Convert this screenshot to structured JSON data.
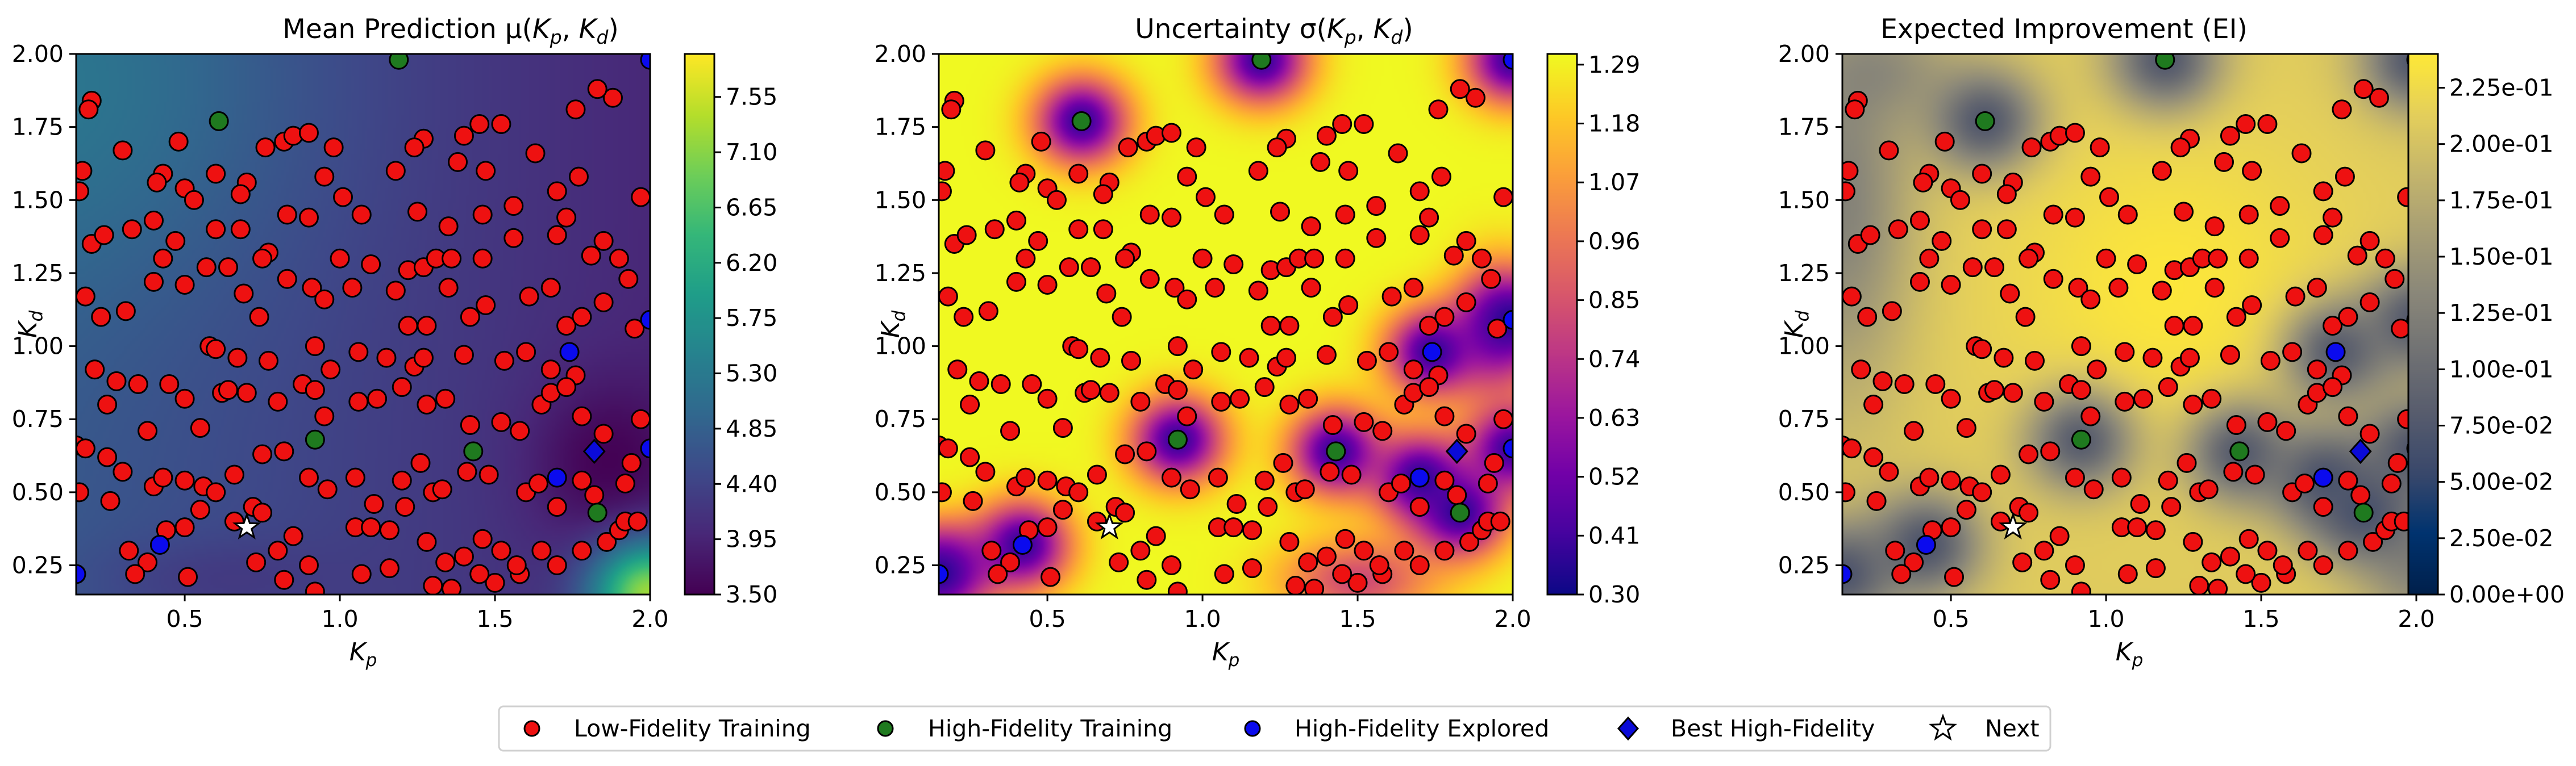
{
  "chart_data": [
    {
      "type": "heatmap",
      "title": "Mean Prediction μ(K_p, K_d)",
      "xlabel": "K_p",
      "ylabel": "K_d",
      "xlim": [
        0.15,
        2.0
      ],
      "ylim": [
        0.15,
        2.0
      ],
      "x_ticks": [
        "0.5",
        "1.0",
        "1.5",
        "2.0"
      ],
      "y_ticks": [
        "0.25",
        "0.50",
        "0.75",
        "1.00",
        "1.25",
        "1.50",
        "1.75",
        "2.00"
      ],
      "colormap": "viridis",
      "colorbar_range": [
        3.5,
        7.9
      ],
      "colorbar_ticks": [
        "3.50",
        "3.95",
        "4.40",
        "4.85",
        "5.30",
        "5.75",
        "6.20",
        "6.65",
        "7.10",
        "7.55"
      ]
    },
    {
      "type": "heatmap",
      "title": "Uncertainty σ(K_p, K_d)",
      "xlabel": "K_p",
      "ylabel": "K_d",
      "xlim": [
        0.15,
        2.0
      ],
      "ylim": [
        0.15,
        2.0
      ],
      "x_ticks": [
        "0.5",
        "1.0",
        "1.5",
        "2.0"
      ],
      "y_ticks": [
        "0.25",
        "0.50",
        "0.75",
        "1.00",
        "1.25",
        "1.50",
        "1.75",
        "2.00"
      ],
      "colormap": "plasma",
      "colorbar_range": [
        0.3,
        1.31
      ],
      "colorbar_ticks": [
        "0.30",
        "0.41",
        "0.52",
        "0.63",
        "0.74",
        "0.85",
        "0.96",
        "1.07",
        "1.18",
        "1.29"
      ]
    },
    {
      "type": "heatmap",
      "title": "Expected Improvement (EI)",
      "xlabel": "K_p",
      "ylabel": "K_d",
      "xlim": [
        0.15,
        2.0
      ],
      "ylim": [
        0.15,
        2.0
      ],
      "x_ticks": [
        "0.5",
        "1.0",
        "1.5",
        "2.0"
      ],
      "y_ticks": [
        "0.25",
        "0.50",
        "0.75",
        "1.00",
        "1.25",
        "1.50",
        "1.75",
        "2.00"
      ],
      "colormap": "cividis",
      "colorbar_range": [
        0.0,
        0.24
      ],
      "colorbar_ticks": [
        "0.00e+00",
        "2.50e-02",
        "5.00e-02",
        "7.50e-02",
        "1.00e-01",
        "1.25e-01",
        "1.50e-01",
        "1.75e-01",
        "2.00e-01",
        "2.25e-01"
      ]
    }
  ],
  "points": {
    "low_fidelity": [
      [
        0.2,
        1.84
      ],
      [
        0.19,
        1.81
      ],
      [
        0.3,
        1.67
      ],
      [
        0.17,
        1.6
      ],
      [
        0.16,
        1.53
      ],
      [
        0.48,
        1.7
      ],
      [
        0.43,
        1.59
      ],
      [
        0.41,
        1.56
      ],
      [
        0.5,
        1.54
      ],
      [
        0.53,
        1.5
      ],
      [
        0.6,
        1.59
      ],
      [
        0.7,
        1.56
      ],
      [
        0.68,
        1.52
      ],
      [
        0.76,
        1.68
      ],
      [
        0.82,
        1.7
      ],
      [
        0.85,
        1.72
      ],
      [
        0.9,
        1.73
      ],
      [
        0.98,
        1.68
      ],
      [
        0.95,
        1.58
      ],
      [
        1.01,
        1.51
      ],
      [
        1.07,
        1.45
      ],
      [
        1.18,
        1.6
      ],
      [
        1.27,
        1.71
      ],
      [
        1.24,
        1.68
      ],
      [
        1.4,
        1.72
      ],
      [
        1.45,
        1.76
      ],
      [
        1.52,
        1.76
      ],
      [
        1.47,
        1.6
      ],
      [
        1.38,
        1.63
      ],
      [
        1.63,
        1.66
      ],
      [
        1.77,
        1.58
      ],
      [
        1.76,
        1.81
      ],
      [
        1.88,
        1.85
      ],
      [
        1.83,
        1.88
      ],
      [
        1.25,
        1.46
      ],
      [
        1.35,
        1.41
      ],
      [
        1.46,
        1.45
      ],
      [
        1.56,
        1.48
      ],
      [
        1.7,
        1.53
      ],
      [
        1.73,
        1.44
      ],
      [
        1.85,
        1.36
      ],
      [
        1.9,
        1.3
      ],
      [
        1.97,
        1.51
      ],
      [
        0.33,
        1.4
      ],
      [
        0.4,
        1.43
      ],
      [
        0.47,
        1.36
      ],
      [
        0.6,
        1.4
      ],
      [
        0.68,
        1.4
      ],
      [
        0.77,
        1.32
      ],
      [
        0.75,
        1.3
      ],
      [
        0.64,
        1.27
      ],
      [
        0.57,
        1.27
      ],
      [
        0.5,
        1.21
      ],
      [
        0.43,
        1.3
      ],
      [
        0.83,
        1.45
      ],
      [
        0.9,
        1.44
      ],
      [
        1.0,
        1.3
      ],
      [
        1.1,
        1.28
      ],
      [
        1.22,
        1.26
      ],
      [
        1.27,
        1.27
      ],
      [
        1.31,
        1.3
      ],
      [
        1.36,
        1.3
      ],
      [
        1.46,
        1.3
      ],
      [
        1.56,
        1.37
      ],
      [
        1.7,
        1.38
      ],
      [
        1.81,
        1.31
      ],
      [
        1.93,
        1.23
      ],
      [
        0.2,
        1.35
      ],
      [
        0.24,
        1.38
      ],
      [
        0.18,
        1.17
      ],
      [
        0.23,
        1.1
      ],
      [
        0.31,
        1.12
      ],
      [
        0.4,
        1.22
      ],
      [
        0.69,
        1.18
      ],
      [
        0.74,
        1.1
      ],
      [
        0.83,
        1.23
      ],
      [
        0.91,
        1.2
      ],
      [
        0.95,
        1.16
      ],
      [
        1.04,
        1.2
      ],
      [
        1.18,
        1.19
      ],
      [
        1.22,
        1.07
      ],
      [
        1.28,
        1.07
      ],
      [
        1.35,
        1.2
      ],
      [
        1.42,
        1.1
      ],
      [
        1.47,
        1.14
      ],
      [
        1.61,
        1.17
      ],
      [
        1.68,
        1.2
      ],
      [
        1.73,
        1.07
      ],
      [
        1.78,
        1.1
      ],
      [
        1.85,
        1.15
      ],
      [
        1.95,
        1.06
      ],
      [
        0.58,
        1.0
      ],
      [
        0.6,
        0.99
      ],
      [
        0.67,
        0.96
      ],
      [
        0.77,
        0.95
      ],
      [
        0.92,
        1.0
      ],
      [
        0.97,
        0.92
      ],
      [
        1.06,
        0.98
      ],
      [
        1.15,
        0.96
      ],
      [
        1.24,
        0.93
      ],
      [
        1.27,
        0.96
      ],
      [
        1.4,
        0.97
      ],
      [
        1.53,
        0.95
      ],
      [
        1.6,
        0.98
      ],
      [
        1.68,
        0.92
      ],
      [
        1.76,
        0.9
      ],
      [
        0.21,
        0.92
      ],
      [
        0.28,
        0.88
      ],
      [
        0.25,
        0.8
      ],
      [
        0.35,
        0.87
      ],
      [
        0.38,
        0.71
      ],
      [
        0.45,
        0.87
      ],
      [
        0.5,
        0.82
      ],
      [
        0.55,
        0.72
      ],
      [
        0.62,
        0.84
      ],
      [
        0.64,
        0.85
      ],
      [
        0.7,
        0.84
      ],
      [
        0.8,
        0.81
      ],
      [
        0.88,
        0.87
      ],
      [
        0.92,
        0.85
      ],
      [
        0.95,
        0.76
      ],
      [
        1.06,
        0.81
      ],
      [
        1.12,
        0.82
      ],
      [
        1.2,
        0.86
      ],
      [
        1.28,
        0.8
      ],
      [
        1.34,
        0.82
      ],
      [
        1.42,
        0.73
      ],
      [
        1.52,
        0.74
      ],
      [
        1.58,
        0.71
      ],
      [
        1.65,
        0.8
      ],
      [
        1.68,
        0.84
      ],
      [
        1.73,
        0.86
      ],
      [
        1.78,
        0.76
      ],
      [
        1.85,
        0.7
      ],
      [
        1.97,
        0.75
      ],
      [
        0.15,
        0.66
      ],
      [
        0.18,
        0.65
      ],
      [
        0.25,
        0.62
      ],
      [
        0.3,
        0.57
      ],
      [
        0.4,
        0.52
      ],
      [
        0.43,
        0.55
      ],
      [
        0.5,
        0.54
      ],
      [
        0.56,
        0.52
      ],
      [
        0.6,
        0.5
      ],
      [
        0.66,
        0.56
      ],
      [
        0.75,
        0.63
      ],
      [
        0.82,
        0.64
      ],
      [
        0.9,
        0.55
      ],
      [
        0.96,
        0.51
      ],
      [
        1.05,
        0.55
      ],
      [
        1.11,
        0.46
      ],
      [
        1.2,
        0.54
      ],
      [
        1.26,
        0.6
      ],
      [
        1.3,
        0.5
      ],
      [
        1.33,
        0.51
      ],
      [
        1.41,
        0.57
      ],
      [
        1.48,
        0.56
      ],
      [
        1.6,
        0.5
      ],
      [
        1.64,
        0.53
      ],
      [
        1.7,
        0.45
      ],
      [
        1.78,
        0.54
      ],
      [
        1.82,
        0.49
      ],
      [
        1.92,
        0.53
      ],
      [
        1.94,
        0.6
      ],
      [
        0.16,
        0.5
      ],
      [
        0.26,
        0.47
      ],
      [
        0.32,
        0.3
      ],
      [
        0.38,
        0.26
      ],
      [
        0.44,
        0.37
      ],
      [
        0.5,
        0.38
      ],
      [
        0.55,
        0.44
      ],
      [
        0.66,
        0.4
      ],
      [
        0.72,
        0.45
      ],
      [
        0.75,
        0.43
      ],
      [
        0.8,
        0.3
      ],
      [
        0.85,
        0.35
      ],
      [
        0.9,
        0.25
      ],
      [
        1.05,
        0.38
      ],
      [
        1.1,
        0.38
      ],
      [
        1.16,
        0.37
      ],
      [
        1.21,
        0.45
      ],
      [
        1.28,
        0.33
      ],
      [
        1.34,
        0.26
      ],
      [
        1.4,
        0.28
      ],
      [
        1.46,
        0.34
      ],
      [
        1.52,
        0.3
      ],
      [
        1.58,
        0.22
      ],
      [
        1.65,
        0.3
      ],
      [
        1.7,
        0.25
      ],
      [
        1.78,
        0.3
      ],
      [
        1.86,
        0.33
      ],
      [
        1.9,
        0.37
      ],
      [
        1.92,
        0.4
      ],
      [
        1.96,
        0.4
      ],
      [
        0.34,
        0.22
      ],
      [
        0.51,
        0.21
      ],
      [
        0.73,
        0.26
      ],
      [
        0.82,
        0.2
      ],
      [
        0.92,
        0.16
      ],
      [
        1.07,
        0.22
      ],
      [
        1.16,
        0.24
      ],
      [
        1.3,
        0.18
      ],
      [
        1.36,
        0.17
      ],
      [
        1.5,
        0.19
      ],
      [
        1.57,
        0.25
      ],
      [
        1.45,
        0.22
      ]
    ],
    "high_fidelity_training": [
      [
        1.19,
        1.98
      ],
      [
        0.61,
        1.77
      ],
      [
        0.92,
        0.68
      ],
      [
        1.43,
        0.64
      ],
      [
        1.83,
        0.43
      ]
    ],
    "high_fidelity_explored": [
      [
        0.42,
        0.32
      ],
      [
        1.74,
        0.98
      ],
      [
        1.7,
        0.55
      ],
      [
        2.0,
        0.65
      ],
      [
        2.0,
        1.09
      ],
      [
        2.0,
        1.98
      ],
      [
        0.15,
        0.22
      ]
    ],
    "best_high_fidelity": [
      1.82,
      0.64
    ],
    "next": [
      0.7,
      0.38
    ]
  },
  "legend": [
    {
      "label": "Low-Fidelity Training",
      "marker": "circle",
      "color": "#ee1111"
    },
    {
      "label": "High-Fidelity Training",
      "marker": "circle",
      "color": "#1f7a1f"
    },
    {
      "label": "High-Fidelity Explored",
      "marker": "circle",
      "color": "#0b0bee"
    },
    {
      "label": "Best High-Fidelity",
      "marker": "diamond",
      "color": "#0b0bd8"
    },
    {
      "label": "Next",
      "marker": "star",
      "color": "#ffffff"
    }
  ]
}
